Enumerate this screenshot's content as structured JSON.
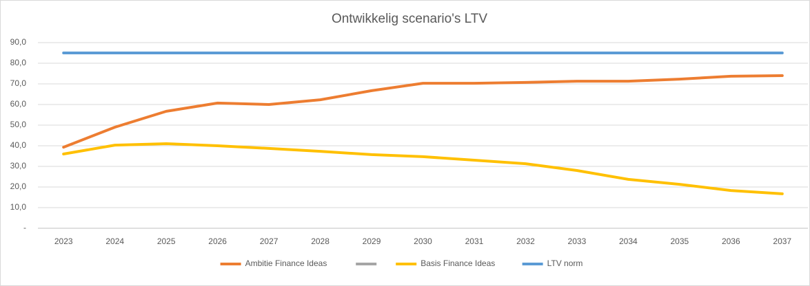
{
  "chart_data": {
    "type": "line",
    "title": "Ontwikkelig scenario's LTV",
    "categories": [
      "2023",
      "2024",
      "2025",
      "2026",
      "2027",
      "2028",
      "2029",
      "2030",
      "2031",
      "2032",
      "2033",
      "2034",
      "2035",
      "2036",
      "2037"
    ],
    "series": [
      {
        "name": "Ambitie Finance Ideas",
        "color": "#ed7d31",
        "values": [
          39.3,
          49,
          56.7,
          60.7,
          60,
          62.3,
          66.7,
          70.3,
          70.3,
          70.7,
          71.3,
          71.3,
          72.3,
          73.7,
          74
        ]
      },
      {
        "color": "#a5a5a5",
        "values": [
          null,
          null,
          null,
          null,
          null,
          null,
          null,
          null,
          null,
          null,
          null,
          null,
          null,
          null,
          null
        ]
      },
      {
        "name": "Basis Finance Ideas",
        "color": "#ffc000",
        "values": [
          36,
          40.3,
          41,
          40,
          38.7,
          37.3,
          35.7,
          34.7,
          33,
          31.3,
          28,
          23.7,
          21.3,
          18.3,
          16.7
        ]
      },
      {
        "name": "LTV norm",
        "color": "#5b9bd5",
        "values": [
          85,
          85,
          85,
          85,
          85,
          85,
          85,
          85,
          85,
          85,
          85,
          85,
          85,
          85,
          85
        ]
      }
    ],
    "ylim": [
      0,
      90
    ],
    "yticks": [
      {
        "value": 0,
        "label": "-"
      },
      {
        "value": 10,
        "label": "10,0"
      },
      {
        "value": 20,
        "label": "20,0"
      },
      {
        "value": 30,
        "label": "30,0"
      },
      {
        "value": 40,
        "label": "40,0"
      },
      {
        "value": 50,
        "label": "50,0"
      },
      {
        "value": 60,
        "label": "60,0"
      },
      {
        "value": 70,
        "label": "70,0"
      },
      {
        "value": 80,
        "label": "80,0"
      },
      {
        "value": 90,
        "label": "90,0"
      }
    ],
    "grid": true,
    "legend": "bottom"
  }
}
